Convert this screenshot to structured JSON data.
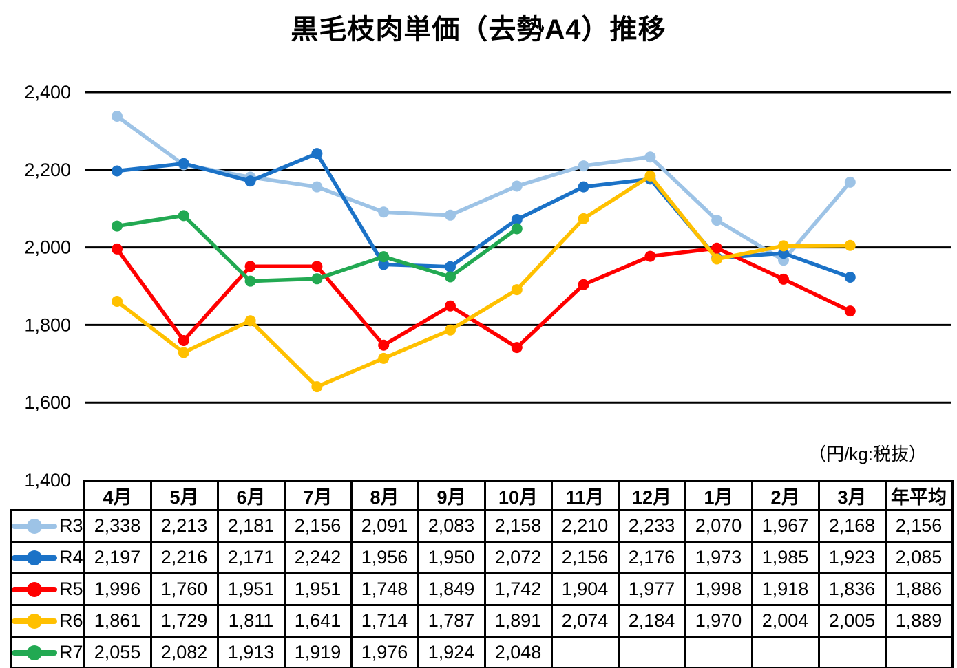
{
  "title": "黒毛枝肉単価（去勢A4）推移",
  "unit_label": "（円/kg:税抜）",
  "chart_data": {
    "type": "line",
    "title": "黒毛枝肉単価（去勢A4）推移",
    "categories": [
      "4月",
      "5月",
      "6月",
      "7月",
      "8月",
      "9月",
      "10月",
      "11月",
      "12月",
      "1月",
      "2月",
      "3月"
    ],
    "series": [
      {
        "name": "R3",
        "color": "#9DC3E6",
        "values": [
          2338,
          2213,
          2181,
          2156,
          2091,
          2083,
          2158,
          2210,
          2233,
          2070,
          1967,
          2168
        ]
      },
      {
        "name": "R4",
        "color": "#1B72C7",
        "values": [
          2197,
          2216,
          2171,
          2242,
          1956,
          1950,
          2072,
          2156,
          2176,
          1973,
          1985,
          1923
        ]
      },
      {
        "name": "R5",
        "color": "#FF0000",
        "values": [
          1996,
          1760,
          1951,
          1951,
          1748,
          1849,
          1742,
          1904,
          1977,
          1998,
          1918,
          1836
        ]
      },
      {
        "name": "R6",
        "color": "#FFC000",
        "values": [
          1861,
          1729,
          1811,
          1641,
          1714,
          1787,
          1891,
          2074,
          2184,
          1970,
          2004,
          2005
        ]
      },
      {
        "name": "R7",
        "color": "#22A952",
        "values": [
          2055,
          2082,
          1913,
          1919,
          1976,
          1924,
          2048,
          null,
          null,
          null,
          null,
          null
        ]
      }
    ],
    "ylim": [
      1400,
      2400
    ],
    "ytick_step": 200,
    "yticks": [
      {
        "value": 2400,
        "label": "2,400"
      },
      {
        "value": 2200,
        "label": "2,200"
      },
      {
        "value": 2000,
        "label": "2,000"
      },
      {
        "value": 1800,
        "label": "1,800"
      },
      {
        "value": 1600,
        "label": "1,600"
      },
      {
        "value": 1400,
        "label": "1,400"
      }
    ],
    "grid": true,
    "gridline_color": "#000000",
    "legend_position": "table-left-column",
    "marker": "circle"
  },
  "table": {
    "corner_label": "",
    "columns": [
      "4月",
      "5月",
      "6月",
      "7月",
      "8月",
      "9月",
      "10月",
      "11月",
      "12月",
      "1月",
      "2月",
      "3月",
      "年平均"
    ],
    "rows": [
      {
        "label": "R3",
        "color": "#9DC3E6",
        "cells": [
          "2,338",
          "2,213",
          "2,181",
          "2,156",
          "2,091",
          "2,083",
          "2,158",
          "2,210",
          "2,233",
          "2,070",
          "1,967",
          "2,168",
          "2,156"
        ]
      },
      {
        "label": "R4",
        "color": "#1B72C7",
        "cells": [
          "2,197",
          "2,216",
          "2,171",
          "2,242",
          "1,956",
          "1,950",
          "2,072",
          "2,156",
          "2,176",
          "1,973",
          "1,985",
          "1,923",
          "2,085"
        ]
      },
      {
        "label": "R5",
        "color": "#FF0000",
        "cells": [
          "1,996",
          "1,760",
          "1,951",
          "1,951",
          "1,748",
          "1,849",
          "1,742",
          "1,904",
          "1,977",
          "1,998",
          "1,918",
          "1,836",
          "1,886"
        ]
      },
      {
        "label": "R6",
        "color": "#FFC000",
        "cells": [
          "1,861",
          "1,729",
          "1,811",
          "1,641",
          "1,714",
          "1,787",
          "1,891",
          "2,074",
          "2,184",
          "1,970",
          "2,004",
          "2,005",
          "1,889"
        ]
      },
      {
        "label": "R7",
        "color": "#22A952",
        "cells": [
          "2,055",
          "2,082",
          "1,913",
          "1,919",
          "1,976",
          "1,924",
          "2,048",
          "",
          "",
          "",
          "",
          "",
          ""
        ]
      }
    ]
  }
}
